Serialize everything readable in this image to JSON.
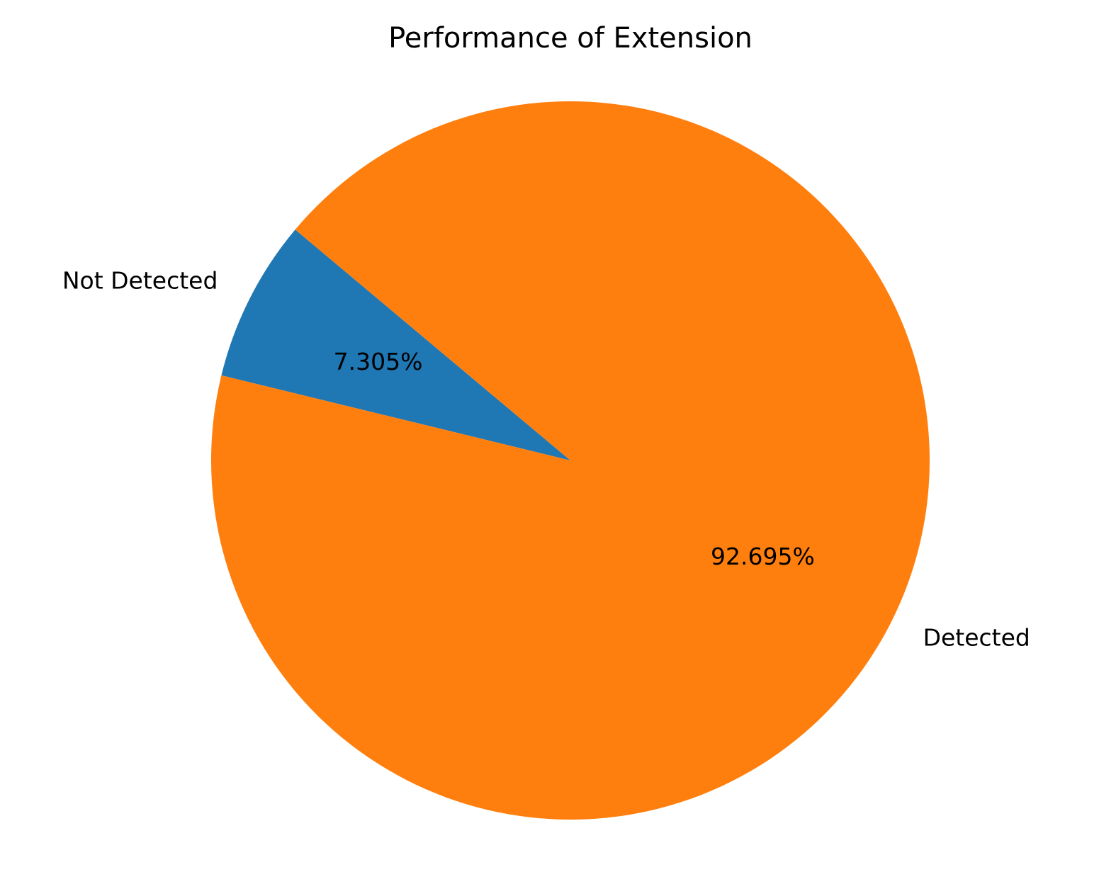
{
  "chart_data": {
    "type": "pie",
    "title": "Performance of Extension",
    "slices": [
      {
        "label": "Not Detected",
        "value": 7.305,
        "pct_label": "7.305%",
        "color": "#1f77b4"
      },
      {
        "label": "Detected",
        "value": 92.695,
        "pct_label": "92.695%",
        "color": "#ff7f0e"
      }
    ],
    "start_angle_deg": 140,
    "direction": "counterclockwise"
  }
}
